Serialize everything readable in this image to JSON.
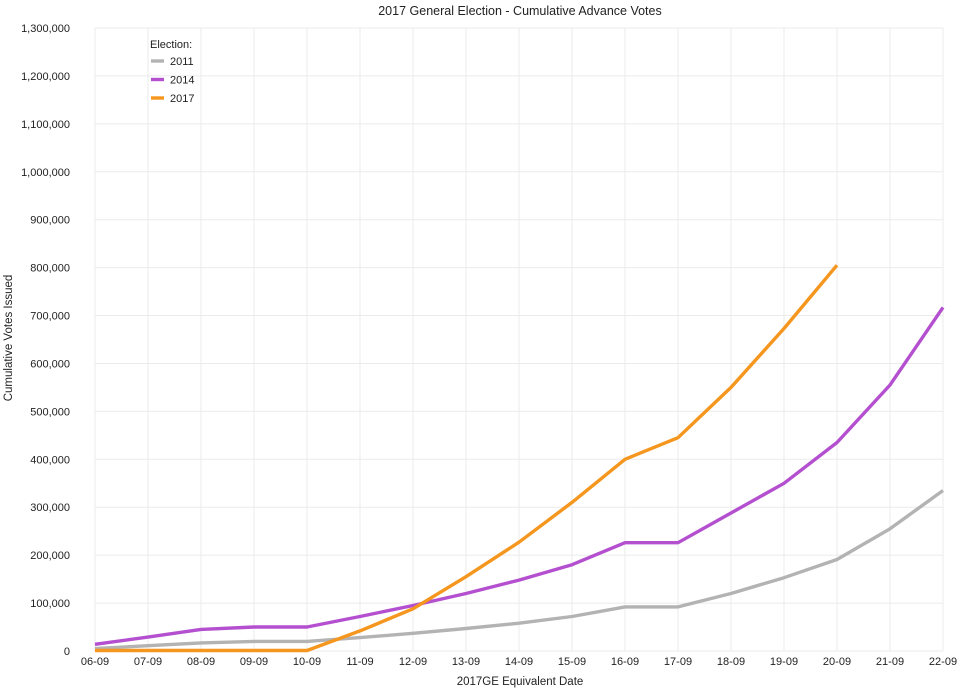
{
  "chart_data": {
    "type": "line",
    "title": "2017 General Election - Cumulative Advance Votes",
    "xlabel": "2017GE Equivalent Date",
    "ylabel": "Cumulative Votes Issued",
    "categories": [
      "06-09",
      "07-09",
      "08-09",
      "09-09",
      "10-09",
      "11-09",
      "12-09",
      "13-09",
      "14-09",
      "15-09",
      "16-09",
      "17-09",
      "18-09",
      "19-09",
      "20-09",
      "21-09",
      "22-09"
    ],
    "yticks": [
      "0",
      "100,000",
      "200,000",
      "300,000",
      "400,000",
      "500,000",
      "600,000",
      "700,000",
      "800,000",
      "900,000",
      "1,000,000",
      "1,100,000",
      "1,200,000",
      "1,300,000"
    ],
    "ylim": [
      0,
      1300000
    ],
    "grid": true,
    "legend": {
      "title": "Election:",
      "placement": "top-left"
    },
    "series": [
      {
        "name": "2011",
        "color": "#b3b3b3",
        "values": [
          5000,
          11000,
          17000,
          20000,
          20000,
          28000,
          37000,
          47000,
          58000,
          72000,
          92000,
          92000,
          120000,
          153000,
          191000,
          255000,
          335000
        ]
      },
      {
        "name": "2014",
        "color": "#b450cf",
        "values": [
          14000,
          29000,
          45000,
          50000,
          50000,
          72000,
          95000,
          120000,
          148000,
          180000,
          226000,
          226000,
          288000,
          350000,
          435000,
          555000,
          717000
        ]
      },
      {
        "name": "2017",
        "color": "#f5961e",
        "values": [
          1000,
          1000,
          1000,
          1000,
          1000,
          42000,
          88000,
          155000,
          227000,
          310000,
          400000,
          445000,
          550000,
          673000,
          805000,
          null,
          null
        ]
      }
    ]
  }
}
